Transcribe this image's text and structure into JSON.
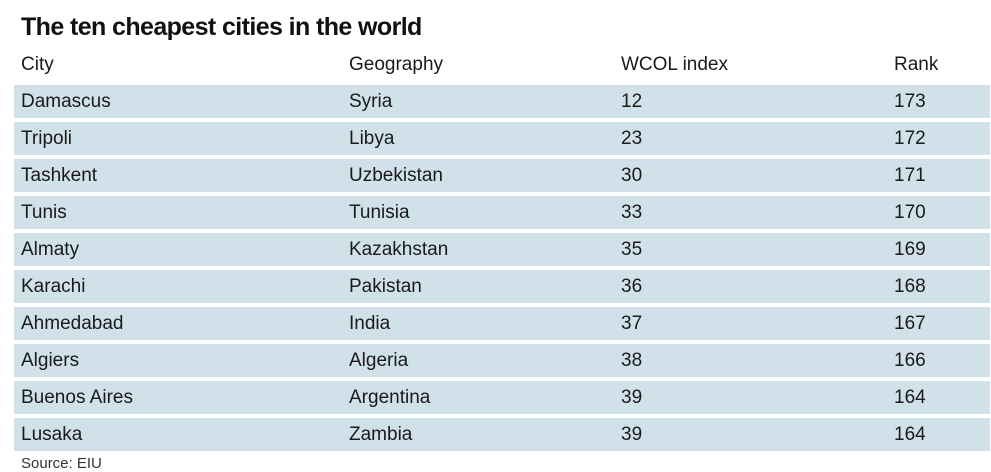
{
  "chart_data": {
    "type": "table",
    "title": "The ten cheapest cities in the world",
    "columns": [
      "City",
      "Geography",
      "WCOL index",
      "Rank"
    ],
    "rows": [
      [
        "Damascus",
        "Syria",
        12,
        173
      ],
      [
        "Tripoli",
        "Libya",
        23,
        172
      ],
      [
        "Tashkent",
        "Uzbekistan",
        30,
        171
      ],
      [
        "Tunis",
        "Tunisia",
        33,
        170
      ],
      [
        "Almaty",
        "Kazakhstan",
        35,
        169
      ],
      [
        "Karachi",
        "Pakistan",
        36,
        168
      ],
      [
        "Ahmedabad",
        "India",
        37,
        167
      ],
      [
        "Algiers",
        "Algeria",
        38,
        166
      ],
      [
        "Buenos Aires",
        "Argentina",
        39,
        164
      ],
      [
        "Lusaka",
        "Zambia",
        39,
        164
      ]
    ],
    "source": "Source: EIU"
  },
  "colors": {
    "row_background": "#d0e1ea",
    "text": "#1a1a1a"
  }
}
